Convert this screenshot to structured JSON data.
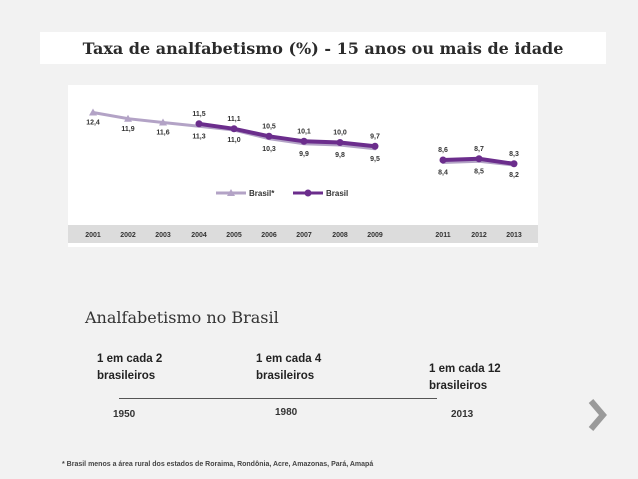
{
  "page": {
    "title": "Taxa de analfabetismo (%) - 15 anos ou mais de idade",
    "subtitle": "Analfabetismo no Brasil",
    "footnote": "* Brasil menos a área rural dos estados de Roraima, Rondônia, Acre, Amazonas, Pará, Amapá"
  },
  "timeline": [
    {
      "label_line1": "1 em cada 2",
      "label_line2": "brasileiros",
      "year": "1950"
    },
    {
      "label_line1": "1 em cada 4",
      "label_line2": "brasileiros",
      "year": "1980"
    },
    {
      "label_line1": "1 em cada 12",
      "label_line2": "brasileiros",
      "year": "2013"
    }
  ],
  "colors": {
    "brasil_star": "#b3a3c6",
    "brasil": "#6b2d8c",
    "axis_band": "#dcdcdc"
  },
  "chart_data": {
    "type": "line",
    "categories": [
      "2001",
      "2002",
      "2003",
      "2004",
      "2005",
      "2006",
      "2007",
      "2008",
      "2009",
      "2011",
      "2012",
      "2013"
    ],
    "series": [
      {
        "name": "Brasil*",
        "values": [
          12.4,
          11.9,
          11.6,
          11.3,
          11.0,
          10.3,
          9.9,
          9.8,
          9.5,
          8.4,
          8.5,
          8.2
        ],
        "labels": [
          "12,4",
          "11,9",
          "11,6",
          "11,3",
          "11,0",
          "10,3",
          "9,9",
          "9,8",
          "9,5",
          "8,4",
          "8,5",
          "8,2"
        ]
      },
      {
        "name": "Brasil",
        "values": [
          null,
          null,
          null,
          11.5,
          11.1,
          10.5,
          10.1,
          10.0,
          9.7,
          8.6,
          8.7,
          8.3
        ],
        "labels": [
          null,
          null,
          null,
          "11,5",
          "11,1",
          "10,5",
          "10,1",
          "10,0",
          "9,7",
          "8,6",
          "8,7",
          "8,3"
        ]
      }
    ],
    "ylim": [
      7,
      13
    ],
    "legend": "bottom-center"
  }
}
